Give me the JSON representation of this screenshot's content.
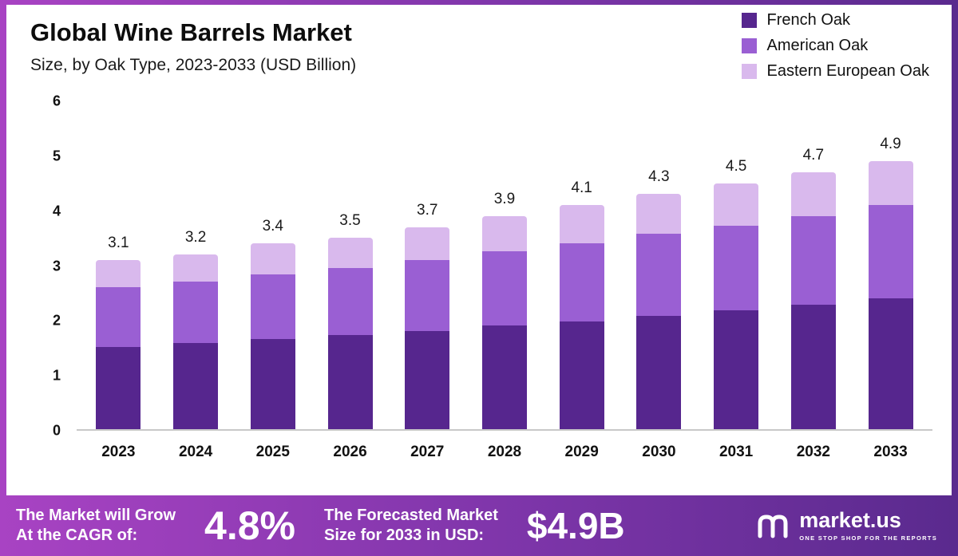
{
  "header": {
    "title": "Global Wine Barrels Market",
    "subtitle": "Size, by Oak Type, 2023-2033 (USD Billion)"
  },
  "chart_data": {
    "type": "bar",
    "stacked": true,
    "title": "Global Wine Barrels Market",
    "subtitle": "Size, by Oak Type, 2023-2033 (USD Billion)",
    "unit": "USD Billion",
    "categories": [
      "2023",
      "2024",
      "2025",
      "2026",
      "2027",
      "2028",
      "2029",
      "2030",
      "2031",
      "2032",
      "2033"
    ],
    "series": [
      {
        "name": "French Oak",
        "color": "#56268e",
        "values": [
          1.5,
          1.57,
          1.65,
          1.72,
          1.8,
          1.9,
          1.97,
          2.07,
          2.17,
          2.28,
          2.4
        ]
      },
      {
        "name": "American Oak",
        "color": "#9a5fd3",
        "values": [
          1.1,
          1.13,
          1.18,
          1.23,
          1.3,
          1.35,
          1.43,
          1.5,
          1.56,
          1.62,
          1.7
        ]
      },
      {
        "name": "Eastern European Oak",
        "color": "#d9b9ed",
        "values": [
          0.5,
          0.5,
          0.57,
          0.55,
          0.6,
          0.65,
          0.7,
          0.73,
          0.77,
          0.8,
          0.8
        ]
      }
    ],
    "totals_labels": [
      "3.1",
      "3.2",
      "3.4",
      "3.5",
      "3.7",
      "3.9",
      "4.1",
      "4.3",
      "4.5",
      "4.7",
      "4.9"
    ],
    "ylim": [
      0,
      6
    ],
    "yticks": [
      0,
      1,
      2,
      3,
      4,
      5,
      6
    ],
    "grid": false,
    "legend_position": "top-right"
  },
  "footer": {
    "cagr_label_line1": "The Market will Grow",
    "cagr_label_line2": "At the CAGR of:",
    "cagr_value": "4.8%",
    "forecast_label_line1": "The Forecasted Market",
    "forecast_label_line2": "Size for 2033 in USD:",
    "forecast_value": "$4.9B",
    "brand": "market.us",
    "brand_tagline": "ONE STOP SHOP FOR THE REPORTS"
  },
  "colors": {
    "french_oak": "#56268e",
    "american_oak": "#9a5fd3",
    "eastern_european_oak": "#d9b9ed",
    "footer_gradient_start": "#a843c3",
    "footer_gradient_end": "#5a2a8e",
    "axis_line": "#c8c8c8"
  }
}
